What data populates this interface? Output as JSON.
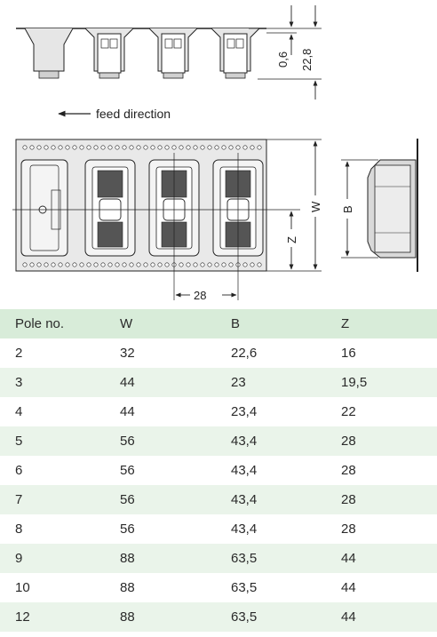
{
  "drawing": {
    "dim_gap": "0,6",
    "dim_height": "22,8",
    "feed_label": "feed direction",
    "dim_w": "W",
    "dim_z": "Z",
    "dim_b": "B",
    "dim_pitch": "28"
  },
  "table": {
    "headers": [
      "Pole no.",
      "W",
      "B",
      "Z"
    ],
    "rows": [
      [
        "2",
        "32",
        "22,6",
        "16"
      ],
      [
        "3",
        "44",
        "23",
        "19,5"
      ],
      [
        "4",
        "44",
        "23,4",
        "22"
      ],
      [
        "5",
        "56",
        "43,4",
        "28"
      ],
      [
        "6",
        "56",
        "43,4",
        "28"
      ],
      [
        "7",
        "56",
        "43,4",
        "28"
      ],
      [
        "8",
        "56",
        "43,4",
        "28"
      ],
      [
        "9",
        "88",
        "63,5",
        "44"
      ],
      [
        "10",
        "88",
        "63,5",
        "44"
      ],
      [
        "12",
        "88",
        "63,5",
        "44"
      ]
    ]
  }
}
